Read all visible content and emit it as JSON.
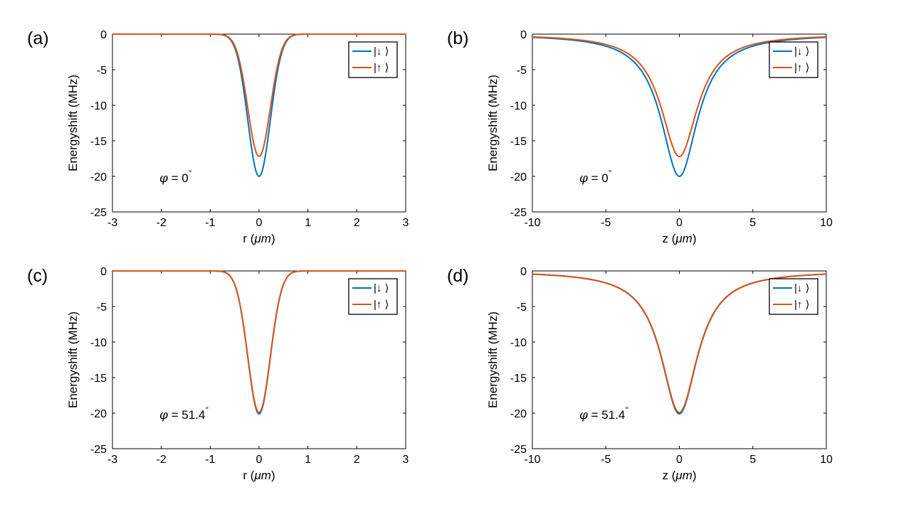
{
  "figure": {
    "legend_entries": [
      "|↓ ⟩",
      "|↑ ⟩"
    ],
    "colors": {
      "down": "#0072BD",
      "up": "#D95319",
      "axes": "#000000",
      "background": "#ffffff"
    }
  },
  "chart_data": [
    {
      "type": "line",
      "panel_label": "(a)",
      "xlabel_var": "r",
      "xlabel_unit": "μm",
      "xlabel": "r (μm)",
      "ylabel": "Energyshift (MHz)",
      "xlim": [
        -3,
        3
      ],
      "ylim": [
        -25,
        0
      ],
      "xticks": [
        "-3",
        "-2",
        "-1",
        "0",
        "1",
        "2",
        "3"
      ],
      "yticks": [
        "0",
        "-5",
        "-10",
        "-15",
        "-20",
        "-25"
      ],
      "annotation": {
        "symbol": "φ",
        "text": " = 0",
        "sup": "°"
      },
      "legend_position": "top-right",
      "series": [
        {
          "name": "|↓ ⟩",
          "color": "#0072BD",
          "profile": "gaussian",
          "depth": -20.0,
          "width": 0.23
        },
        {
          "name": "|↑ ⟩",
          "color": "#D95319",
          "profile": "gaussian",
          "depth": -17.2,
          "width": 0.23
        }
      ]
    },
    {
      "type": "line",
      "panel_label": "(b)",
      "xlabel_var": "z",
      "xlabel_unit": "μm",
      "xlabel": "z (μm)",
      "ylabel": "Energyshift (MHz)",
      "xlim": [
        -10,
        10
      ],
      "ylim": [
        -25,
        0
      ],
      "xticks": [
        "-10",
        "-5",
        "0",
        "5",
        "10"
      ],
      "yticks": [
        "0",
        "-5",
        "-10",
        "-15",
        "-20",
        "-25"
      ],
      "annotation": {
        "symbol": "φ",
        "text": " = 0",
        "sup": "°"
      },
      "legend_position": "top-right",
      "series": [
        {
          "name": "|↓ ⟩",
          "color": "#0072BD",
          "profile": "lorentzian",
          "depth": -20.0,
          "width": 1.52
        },
        {
          "name": "|↑ ⟩",
          "color": "#D95319",
          "profile": "lorentzian",
          "depth": -17.2,
          "width": 1.52
        }
      ]
    },
    {
      "type": "line",
      "panel_label": "(c)",
      "xlabel_var": "r",
      "xlabel_unit": "μm",
      "xlabel": "r (μm)",
      "ylabel": "Energyshift (MHz)",
      "xlim": [
        -3,
        3
      ],
      "ylim": [
        -25,
        0
      ],
      "xticks": [
        "-3",
        "-2",
        "-1",
        "0",
        "1",
        "2",
        "3"
      ],
      "yticks": [
        "0",
        "-5",
        "-10",
        "-15",
        "-20",
        "-25"
      ],
      "annotation": {
        "symbol": "φ",
        "text": " = 51.4",
        "sup": "°"
      },
      "legend_position": "top-right",
      "series": [
        {
          "name": "|↓ ⟩",
          "color": "#0072BD",
          "profile": "gaussian",
          "depth": -20.1,
          "width": 0.23
        },
        {
          "name": "|↑ ⟩",
          "color": "#D95319",
          "profile": "gaussian",
          "depth": -19.9,
          "width": 0.23
        }
      ]
    },
    {
      "type": "line",
      "panel_label": "(d)",
      "xlabel_var": "z",
      "xlabel_unit": "μm",
      "xlabel": "z (μm)",
      "ylabel": "Energyshift (MHz)",
      "xlim": [
        -10,
        10
      ],
      "ylim": [
        -25,
        0
      ],
      "xticks": [
        "-10",
        "-5",
        "0",
        "5",
        "10"
      ],
      "yticks": [
        "0",
        "-5",
        "-10",
        "-15",
        "-20",
        "-25"
      ],
      "annotation": {
        "symbol": "φ",
        "text": " = 51.4",
        "sup": "°"
      },
      "legend_position": "top-right",
      "series": [
        {
          "name": "|↓ ⟩",
          "color": "#0072BD",
          "profile": "lorentzian",
          "depth": -20.1,
          "width": 1.52
        },
        {
          "name": "|↑ ⟩",
          "color": "#D95319",
          "profile": "lorentzian",
          "depth": -19.9,
          "width": 1.52
        }
      ]
    }
  ]
}
